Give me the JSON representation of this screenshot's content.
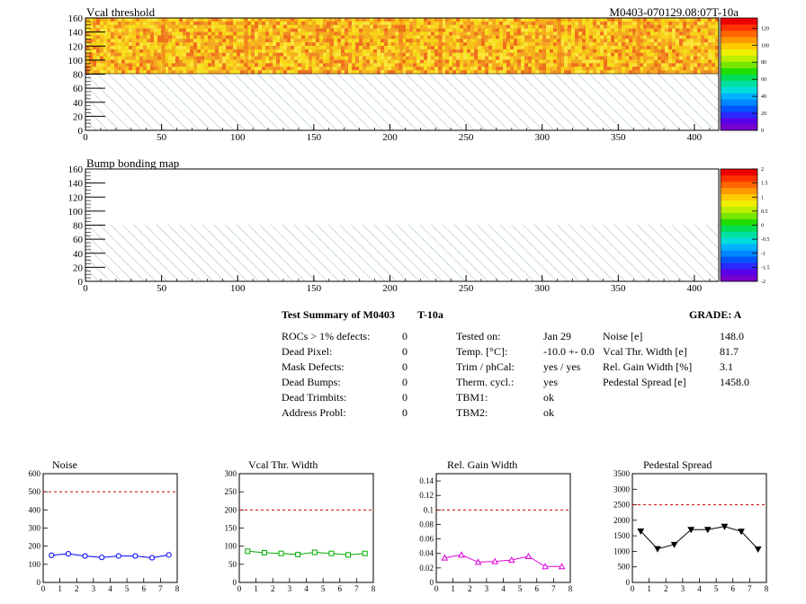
{
  "header": {
    "map1_title": "Vcal threshold",
    "module_id": "M0403-070129.08:07T-10a",
    "map2_title": "Bump bonding map"
  },
  "maps": {
    "x_ticks": [
      "0",
      "50",
      "100",
      "150",
      "200",
      "250",
      "300",
      "350",
      "400"
    ],
    "y_ticks": [
      "0",
      "20",
      "40",
      "60",
      "80",
      "100",
      "120",
      "140",
      "160"
    ],
    "map1_scale_ticks": [
      "0",
      "20",
      "40",
      "60",
      "80",
      "100",
      "120"
    ],
    "map2_scale_ticks": [
      "-2",
      "-1.5",
      "-1",
      "-0.5",
      "0",
      "0.5",
      "1",
      "1.5",
      "2"
    ]
  },
  "summary": {
    "title": "Test Summary of M0403",
    "title_suffix": "T-10a",
    "grade_label": "GRADE:  A",
    "defects": [
      {
        "label": "ROCs > 1% defects:",
        "value": "0"
      },
      {
        "label": "Dead Pixel:",
        "value": "0"
      },
      {
        "label": "Mask Defects:",
        "value": "0"
      },
      {
        "label": "Dead Bumps:",
        "value": "0"
      },
      {
        "label": "Dead Trimbits:",
        "value": "0"
      },
      {
        "label": "Address Probl:",
        "value": "0"
      }
    ],
    "conditions": [
      {
        "label": "Tested on:",
        "value": "Jan 29"
      },
      {
        "label": "Temp. [°C]:",
        "value": "-10.0 +- 0.0"
      },
      {
        "label": "Trim / phCal:",
        "value": "yes / yes"
      },
      {
        "label": "Therm. cycl.:",
        "value": "yes"
      },
      {
        "label": "TBM1:",
        "value": "ok"
      },
      {
        "label": "TBM2:",
        "value": "ok"
      }
    ],
    "results": [
      {
        "label": "Noise [e]",
        "value": "148.0"
      },
      {
        "label": "Vcal Thr. Width [e]",
        "value": "81.7"
      },
      {
        "label": "Rel. Gain Width [%]",
        "value": "3.1"
      },
      {
        "label": "Pedestal Spread [e]",
        "value": "1458.0"
      }
    ]
  },
  "chart_data": [
    {
      "type": "line",
      "title": "Noise",
      "x": [
        0.5,
        1.5,
        2.5,
        3.5,
        4.5,
        5.5,
        6.5,
        7.5
      ],
      "values": [
        150,
        158,
        146,
        138,
        146,
        146,
        136,
        152
      ],
      "xlim": [
        0,
        8
      ],
      "ylim": [
        0,
        600
      ],
      "xticks": [
        0,
        1,
        2,
        3,
        4,
        5,
        6,
        7,
        8
      ],
      "yticks": [
        0,
        100,
        200,
        300,
        400,
        500,
        600
      ],
      "threshold": 500,
      "marker": "circle",
      "color": "#0000ff",
      "reference_color": "#cc0000"
    },
    {
      "type": "line",
      "title": "Vcal Thr. Width",
      "x": [
        0.5,
        1.5,
        2.5,
        3.5,
        4.5,
        5.5,
        6.5,
        7.5
      ],
      "values": [
        86,
        82,
        80,
        77,
        83,
        80,
        76,
        80
      ],
      "xlim": [
        0,
        8
      ],
      "ylim": [
        0,
        300
      ],
      "xticks": [
        0,
        1,
        2,
        3,
        4,
        5,
        6,
        7,
        8
      ],
      "yticks": [
        0,
        50,
        100,
        150,
        200,
        250,
        300
      ],
      "threshold": 200,
      "marker": "square",
      "color": "#00aa00",
      "reference_color": "#cc0000"
    },
    {
      "type": "line",
      "title": "Rel. Gain Width",
      "x": [
        0.5,
        1.5,
        2.5,
        3.5,
        4.5,
        5.5,
        6.5,
        7.5
      ],
      "values": [
        0.034,
        0.038,
        0.028,
        0.029,
        0.031,
        0.036,
        0.022,
        0.022
      ],
      "xlim": [
        0,
        8
      ],
      "ylim": [
        0,
        0.15
      ],
      "xticks": [
        0,
        1,
        2,
        3,
        4,
        5,
        6,
        7,
        8
      ],
      "yticks": [
        0,
        0.02,
        0.04,
        0.06,
        0.08,
        0.1,
        0.12,
        0.14
      ],
      "threshold": 0.1,
      "marker": "triangle",
      "color": "#dd00dd",
      "reference_color": "#cc0000"
    },
    {
      "type": "line",
      "title": "Pedestal Spread",
      "x": [
        0.5,
        1.5,
        2.5,
        3.5,
        4.5,
        5.5,
        6.5,
        7.5
      ],
      "values": [
        1650,
        1080,
        1220,
        1700,
        1700,
        1800,
        1640,
        1070
      ],
      "xlim": [
        0,
        8
      ],
      "ylim": [
        0,
        3500
      ],
      "xticks": [
        0,
        1,
        2,
        3,
        4,
        5,
        6,
        7,
        8
      ],
      "yticks": [
        0,
        500,
        1000,
        1500,
        2000,
        2500,
        3000,
        3500
      ],
      "threshold": 2500,
      "marker": "triangle-down",
      "color": "#000000",
      "reference_color": "#cc0000"
    }
  ]
}
